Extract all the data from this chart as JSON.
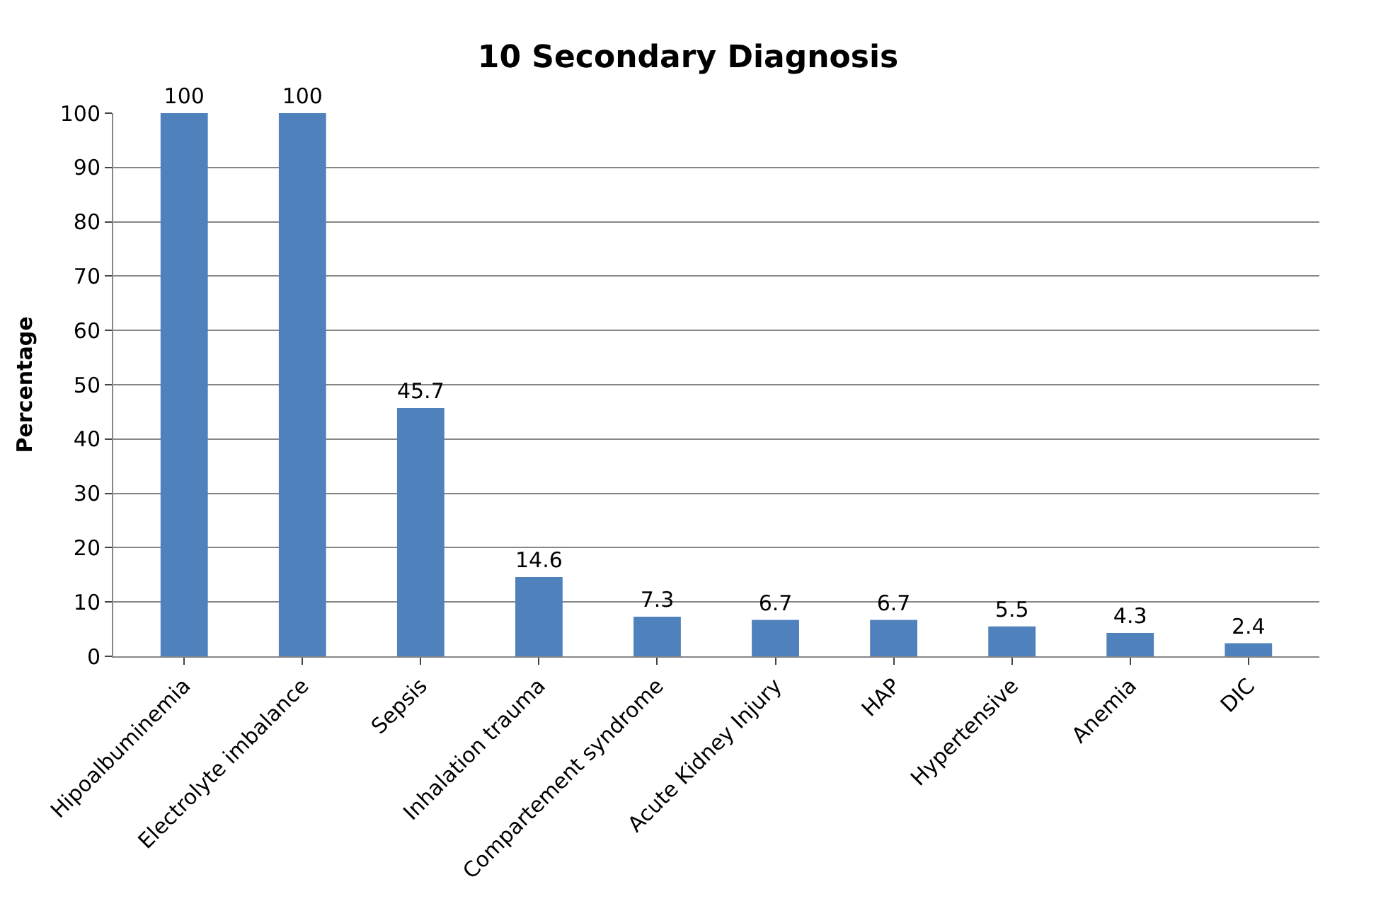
{
  "chart_data": {
    "type": "bar",
    "title": "10 Secondary Diagnosis",
    "ylabel": "Percentage",
    "categories": [
      "Hipoalbuminemia",
      "Electrolyte imbalance",
      "Sepsis",
      "Inhalation trauma",
      "Compartement syndrome",
      "Acute Kidney Injury",
      "HAP",
      "Hypertensive",
      "Anemia",
      "DIC"
    ],
    "values": [
      100,
      100,
      45.7,
      14.6,
      7.3,
      6.7,
      6.7,
      5.5,
      4.3,
      2.4
    ],
    "color": "#4f81bd",
    "ylim": [
      0,
      100
    ],
    "yticks": [
      0,
      10,
      20,
      30,
      40,
      50,
      60,
      70,
      80,
      90,
      100
    ],
    "grid": "y",
    "data_labels": true
  }
}
